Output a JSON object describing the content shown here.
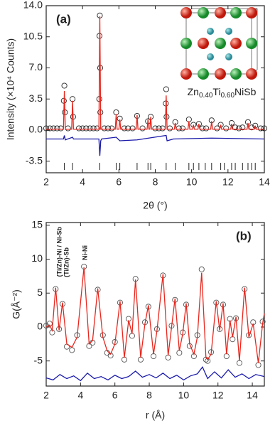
{
  "chart_data": [
    {
      "type": "line",
      "panel_label": "(a)",
      "x_label": "2θ (°)",
      "y_label": "Intensity (×10⁴ Counts)",
      "inset_formula": [
        "Zn",
        "0.40",
        "Ti",
        "0.60",
        "NiSb"
      ],
      "xlim": [
        2,
        14
      ],
      "ylim": [
        -4.8,
        14
      ],
      "xticks": [
        2,
        4,
        6,
        8,
        10,
        12,
        14
      ],
      "yticks": [
        {
          "value": -3.5,
          "label": "-3.5"
        },
        {
          "value": 0,
          "label": "0.0"
        },
        {
          "value": 3.5,
          "label": "3.5"
        },
        {
          "value": 7,
          "label": "7.0"
        },
        {
          "value": 10.5,
          "label": "10.5"
        },
        {
          "value": 14,
          "label": "14.0"
        }
      ],
      "series": [
        {
          "mode": "markers",
          "color": "#222222",
          "x": [
            2.0,
            2.2,
            2.4,
            2.6,
            2.8,
            2.97,
            3.0,
            3.03,
            3.2,
            3.45,
            3.48,
            3.8,
            4.0,
            4.2,
            4.4,
            4.6,
            4.8,
            4.92,
            4.93,
            4.95,
            4.97,
            4.98,
            5.2,
            5.4,
            5.6,
            5.85,
            6.05,
            6.3,
            6.5,
            6.75,
            7.0,
            7.3,
            7.6,
            7.75,
            8.0,
            8.2,
            8.4,
            8.58,
            8.6,
            8.62,
            8.8,
            9.1,
            9.3,
            9.5,
            9.85,
            10.1,
            10.4,
            10.6,
            10.8,
            11.1,
            11.4,
            11.6,
            11.9,
            12.2,
            12.4,
            12.6,
            12.8,
            13.1,
            13.3,
            13.5,
            13.8,
            14.0
          ],
          "values": [
            0.2,
            0.2,
            0.2,
            0.2,
            0.2,
            3.3,
            5.0,
            2.0,
            0.2,
            3.5,
            1.5,
            0.2,
            0.2,
            0.2,
            0.2,
            0.2,
            0.2,
            3.5,
            10.6,
            12.9,
            7.0,
            2.0,
            0.2,
            0.2,
            0.2,
            2.0,
            1.3,
            0.2,
            0.2,
            0.2,
            1.6,
            0.2,
            1.0,
            1.5,
            0.2,
            0.2,
            0.2,
            3.0,
            4.6,
            1.5,
            0.2,
            0.9,
            0.2,
            0.2,
            1.2,
            0.6,
            0.7,
            0.2,
            0.2,
            1.1,
            0.2,
            0.6,
            0.2,
            0.8,
            0.3,
            0.2,
            0.3,
            0.9,
            0.3,
            0.5,
            0.2,
            0.2
          ]
        },
        {
          "mode": "line",
          "color": "#e8261d",
          "x": [
            2.0,
            2.95,
            3.0,
            3.05,
            3.4,
            3.45,
            3.5,
            4.9,
            4.95,
            5.0,
            5.8,
            5.85,
            5.9,
            6.0,
            6.05,
            6.1,
            6.95,
            7.0,
            7.05,
            7.55,
            7.6,
            7.65,
            7.7,
            7.75,
            7.8,
            8.55,
            8.6,
            8.65,
            9.05,
            9.1,
            9.15,
            9.8,
            9.85,
            9.9,
            10.05,
            10.1,
            10.15,
            10.35,
            10.4,
            10.45,
            11.05,
            11.1,
            11.15,
            11.55,
            11.6,
            11.65,
            12.15,
            12.2,
            12.25,
            13.05,
            13.1,
            13.15,
            13.45,
            13.5,
            13.55,
            14.0
          ],
          "values": [
            0.1,
            0.1,
            4.4,
            0.1,
            0.1,
            3.3,
            0.1,
            0.1,
            12.8,
            0.1,
            0.1,
            1.8,
            0.1,
            0.1,
            1.2,
            0.1,
            0.1,
            1.7,
            0.1,
            0.1,
            1.2,
            0.1,
            0.1,
            1.5,
            0.1,
            0.1,
            3.9,
            0.1,
            0.1,
            0.8,
            0.1,
            0.1,
            1.0,
            0.1,
            0.1,
            0.6,
            0.1,
            0.1,
            0.7,
            0.1,
            0.1,
            1.0,
            0.1,
            0.1,
            0.6,
            0.1,
            0.1,
            0.7,
            0.1,
            0.1,
            0.8,
            0.1,
            0.1,
            0.5,
            0.1,
            0.1
          ]
        },
        {
          "mode": "line",
          "color": "#1a1aaa",
          "x": [
            2.0,
            2.95,
            3.0,
            3.05,
            3.45,
            3.5,
            4.9,
            4.95,
            5.0,
            5.05,
            5.85,
            6.05,
            7.0,
            8.6,
            8.65,
            9.0,
            11.1,
            14.0
          ],
          "values": [
            -1.0,
            -1.0,
            -0.6,
            -1.1,
            -0.8,
            -1.0,
            -1.0,
            -2.9,
            -1.2,
            -1.0,
            -0.8,
            -1.2,
            -1.1,
            -0.6,
            -1.2,
            -1.0,
            -0.9,
            -1.0
          ]
        }
      ],
      "reflections": [
        3.0,
        3.45,
        4.95,
        5.85,
        6.05,
        7.0,
        7.6,
        7.75,
        8.6,
        9.1,
        9.85,
        10.1,
        10.4,
        10.75,
        11.1,
        11.6,
        11.8,
        12.2,
        12.4,
        12.8,
        13.1,
        13.3,
        13.5
      ],
      "reflection_color": "#222222"
    },
    {
      "type": "line",
      "panel_label": "(b)",
      "x_label": "r (Å)",
      "y_label": "G(Å⁻²)",
      "annotations": [
        "(Ti/Zn)-Ni / Ni-Sb",
        "(Ti/Zn)-Sb",
        "Ni-Ni"
      ],
      "xlim": [
        2,
        14.7
      ],
      "ylim": [
        -8.7,
        15.4
      ],
      "xticks": [
        2,
        4,
        6,
        8,
        10,
        12,
        14
      ],
      "yticks": [
        -5,
        0,
        5,
        10,
        15
      ],
      "series": [
        {
          "mode": "markers",
          "color": "#555555",
          "x": [
            2.0,
            2.2,
            2.35,
            2.55,
            2.75,
            2.95,
            3.2,
            3.5,
            3.8,
            4.2,
            4.5,
            4.7,
            5.0,
            5.3,
            5.55,
            5.75,
            6.0,
            6.3,
            6.55,
            6.8,
            7.0,
            7.2,
            7.5,
            7.75,
            7.95,
            8.25,
            8.45,
            8.8,
            9.1,
            9.3,
            9.5,
            9.75,
            9.95,
            10.15,
            10.35,
            10.6,
            10.8,
            11.05,
            11.3,
            11.4,
            11.6,
            11.9,
            12.1,
            12.3,
            12.5,
            12.7,
            12.85,
            13.05,
            13.25,
            13.55,
            13.8,
            14.05,
            14.35,
            14.6
          ],
          "values": [
            0.2,
            0.5,
            -0.8,
            5.6,
            -0.3,
            3.4,
            -2.9,
            -3.4,
            -1.2,
            8.9,
            -2.8,
            -2.3,
            5.5,
            -1.2,
            -3.8,
            -4.2,
            -2.2,
            3.6,
            -4.8,
            1.2,
            -1.3,
            7.1,
            -4.8,
            0.7,
            3.0,
            -4.3,
            -0.3,
            7.6,
            -4.5,
            0.2,
            4.0,
            -3.8,
            -0.8,
            3.3,
            -2.8,
            -4.3,
            -1.2,
            8.5,
            -4.8,
            -5.0,
            -3.7,
            3.6,
            -0.3,
            3.3,
            -4.3,
            1.2,
            -1.8,
            1.3,
            -5.3,
            5.6,
            -1.2,
            0.7,
            -5.6,
            0.8
          ]
        },
        {
          "mode": "line",
          "color": "#e8261d",
          "x": [
            2.0,
            2.2,
            2.35,
            2.55,
            2.75,
            2.95,
            3.2,
            3.5,
            3.8,
            4.2,
            4.5,
            4.7,
            5.0,
            5.3,
            5.55,
            5.75,
            6.0,
            6.3,
            6.55,
            6.8,
            7.0,
            7.2,
            7.5,
            7.75,
            7.95,
            8.25,
            8.45,
            8.8,
            9.1,
            9.3,
            9.5,
            9.75,
            9.95,
            10.15,
            10.35,
            10.6,
            10.8,
            11.05,
            11.3,
            11.4,
            11.6,
            11.9,
            12.1,
            12.3,
            12.5,
            12.7,
            12.85,
            13.05,
            13.25,
            13.55,
            13.8,
            14.05,
            14.35,
            14.6,
            14.7
          ],
          "values": [
            0,
            0.3,
            -0.5,
            5.8,
            -0.5,
            3.6,
            -2.5,
            -3.0,
            -1.5,
            8.8,
            -2.5,
            -2.0,
            5.7,
            -1.5,
            -3.5,
            -4.0,
            -2.5,
            3.8,
            -4.5,
            1.0,
            -1.0,
            7.0,
            -4.5,
            0.5,
            3.2,
            -4.0,
            -0.5,
            7.8,
            -4.2,
            0.0,
            4.2,
            -3.5,
            -1.0,
            3.5,
            -2.5,
            -4.0,
            -1.5,
            8.0,
            -4.5,
            -4.8,
            -4.0,
            3.8,
            -0.5,
            3.5,
            -4.0,
            1.0,
            -1.5,
            1.5,
            -5.0,
            5.8,
            -1.5,
            0.5,
            -5.3,
            0.5,
            2.0
          ]
        },
        {
          "mode": "line",
          "color": "#1a1aaa",
          "x": [
            2.0,
            2.4,
            2.8,
            3.2,
            3.6,
            4.0,
            4.4,
            4.8,
            5.2,
            5.6,
            6.0,
            6.4,
            6.8,
            7.2,
            7.6,
            8.0,
            8.4,
            8.8,
            9.2,
            9.6,
            10.0,
            10.4,
            10.8,
            11.1,
            11.4,
            11.8,
            12.2,
            12.6,
            13.0,
            13.4,
            13.8,
            14.2,
            14.7
          ],
          "values": [
            -7.5,
            -7.8,
            -7.0,
            -7.6,
            -7.2,
            -7.9,
            -6.8,
            -7.6,
            -7.3,
            -7.8,
            -7.1,
            -7.6,
            -7.3,
            -6.5,
            -7.4,
            -7.0,
            -7.5,
            -6.8,
            -7.6,
            -7.1,
            -7.8,
            -7.2,
            -6.9,
            -5.9,
            -7.6,
            -6.6,
            -7.5,
            -6.3,
            -7.4,
            -6.9,
            -7.6,
            -7.0,
            -7.3
          ]
        }
      ]
    }
  ]
}
